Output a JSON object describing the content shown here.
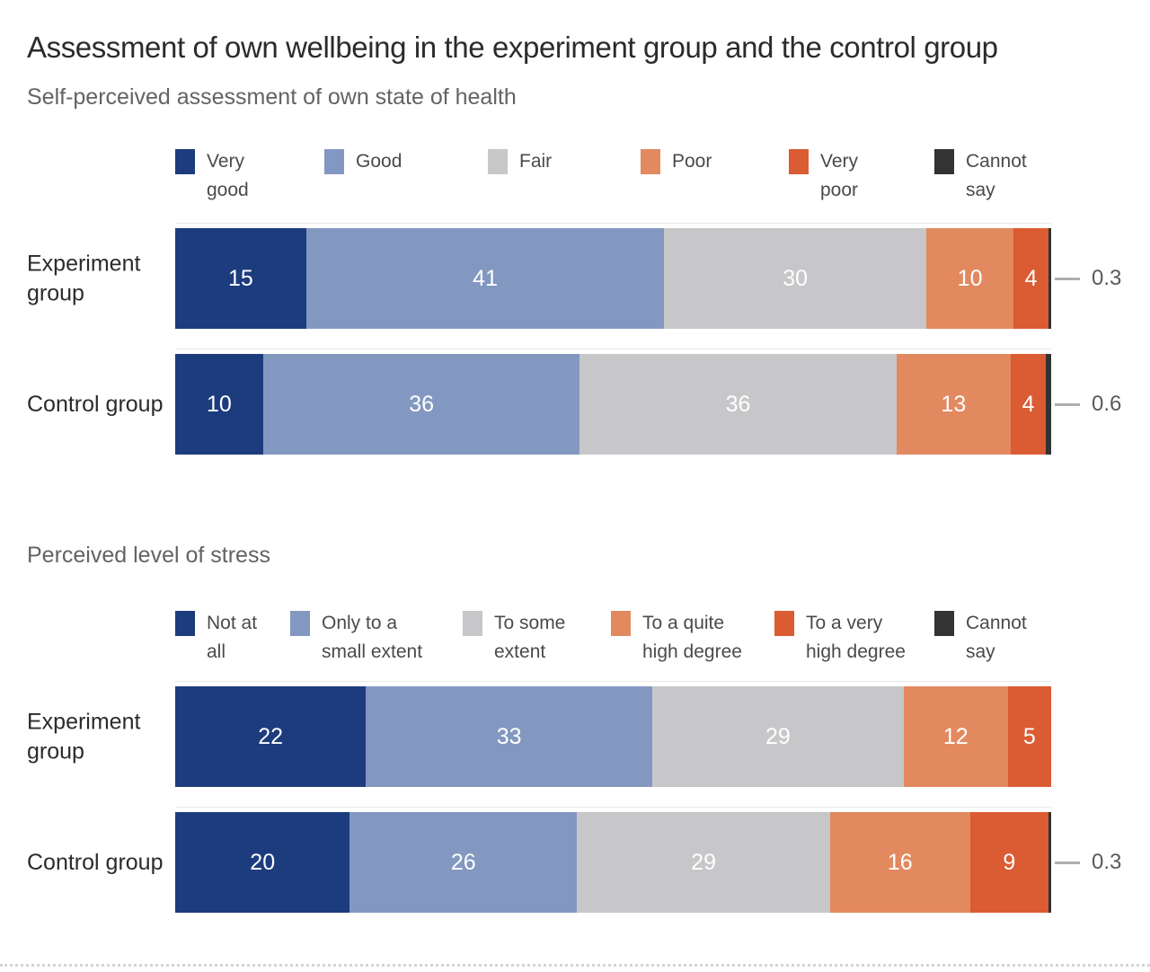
{
  "title": "Assessment of own wellbeing in the experiment group and the control group",
  "colors": {
    "very_positive": "#1d3c7e",
    "positive": "#8398c0",
    "neutral": "#c7c7ca",
    "negative": "#e28960",
    "very_negative": "#db5b32",
    "cannot_say": "#333333",
    "callout_line": "#aeaeae",
    "title_text": "#2b2b2b",
    "subtitle_text": "#636363",
    "inside_value_text": "#ffffff"
  },
  "chart_data": [
    {
      "type": "bar",
      "orientation": "horizontal",
      "stacked": true,
      "title": "Self-perceived assessment of own state of health",
      "categories": [
        "Experiment group",
        "Control group"
      ],
      "xlim": [
        0,
        100
      ],
      "legend_position": "top",
      "value_labels": "inside",
      "series": [
        {
          "name": "Very good",
          "legend_label": "Very\ngood",
          "color": "#1d3c7e",
          "values": [
            15,
            10
          ]
        },
        {
          "name": "Good",
          "legend_label": "Good",
          "color": "#8398c0",
          "values": [
            41,
            36
          ]
        },
        {
          "name": "Fair",
          "legend_label": "Fair",
          "color": "#c7c7ca",
          "values": [
            30,
            36
          ]
        },
        {
          "name": "Poor",
          "legend_label": "Poor",
          "color": "#e28960",
          "values": [
            10,
            13
          ]
        },
        {
          "name": "Very poor",
          "legend_label": "Very\npoor",
          "color": "#db5b32",
          "values": [
            4,
            4
          ]
        },
        {
          "name": "Cannot say",
          "legend_label": "Cannot\nsay",
          "color": "#333333",
          "values": [
            0.3,
            0.6
          ],
          "outside_labels": true
        }
      ]
    },
    {
      "type": "bar",
      "orientation": "horizontal",
      "stacked": true,
      "title": "Perceived level of stress",
      "categories": [
        "Experiment group",
        "Control group"
      ],
      "xlim": [
        0,
        100
      ],
      "legend_position": "top",
      "value_labels": "inside",
      "series": [
        {
          "name": "Not at all",
          "legend_label": "Not at\nall",
          "color": "#1d3c7e",
          "values": [
            22,
            20
          ]
        },
        {
          "name": "Only to a small extent",
          "legend_label": "Only to a\nsmall extent",
          "color": "#8398c0",
          "values": [
            33,
            26
          ]
        },
        {
          "name": "To some extent",
          "legend_label": "To some\nextent",
          "color": "#c7c7ca",
          "values": [
            29,
            29
          ]
        },
        {
          "name": "To a quite high degree",
          "legend_label": "To a quite\nhigh degree",
          "color": "#e28960",
          "values": [
            12,
            16
          ]
        },
        {
          "name": "To a very high degree",
          "legend_label": "To a very\nhigh degree",
          "color": "#db5b32",
          "values": [
            5,
            9
          ]
        },
        {
          "name": "Cannot say",
          "legend_label": "Cannot\nsay",
          "color": "#333333",
          "values": [
            null,
            0.3
          ],
          "outside_labels": true
        }
      ]
    }
  ]
}
